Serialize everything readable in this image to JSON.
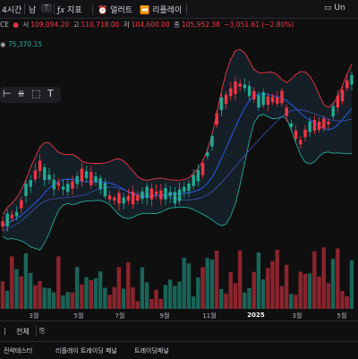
{
  "topbar": {
    "interval": "4시간",
    "chart_type_icon": "candles-icon",
    "compare_label": "남",
    "indicators_label": "지표",
    "alert_label": "얼러트",
    "replay_label": "리플레이",
    "right_partial": "Un"
  },
  "ohlc": {
    "symbol_fragment": "CE",
    "open_label": "시",
    "open": "109,094.20",
    "high_label": "고",
    "high": "110,718.00",
    "low_label": "저",
    "low": "104,600.00",
    "close_label": "종",
    "close": "105,952.38",
    "change": "−3,051.61 (−2.80%)"
  },
  "bb": {
    "value": "75,370.15"
  },
  "toolbox": {
    "icons": [
      "horizontal-line-icon",
      "vertical-line-icon",
      "rectangle-icon",
      "text-icon"
    ]
  },
  "xaxis": {
    "labels": [
      {
        "text": "3월",
        "bold": false
      },
      {
        "text": "5월",
        "bold": false
      },
      {
        "text": "7월",
        "bold": false
      },
      {
        "text": "9월",
        "bold": false
      },
      {
        "text": "11월",
        "bold": false
      },
      {
        "text": "2025",
        "bold": true
      },
      {
        "text": "3월",
        "bold": false
      },
      {
        "text": "5월",
        "bold": false
      }
    ]
  },
  "bottom": {
    "range_label": "전체",
    "tabs": [
      "전략테스터",
      "리플레이 트레이딩 패널",
      "트레이딩패널"
    ]
  },
  "chart_data": {
    "type": "candlestick",
    "title": "",
    "xlabel": "",
    "ylabel": "",
    "overlays": [
      "Bollinger Bands (upper, basis, lower)",
      "moving average"
    ],
    "volume": true,
    "x_ticks": [
      "3월",
      "5월",
      "7월",
      "9월",
      "11월",
      "2025",
      "3월",
      "5월"
    ],
    "colors": {
      "up": "#22ab94",
      "down": "#f23645",
      "bb_upper": "#f23645",
      "bb_lower": "#22ab94",
      "bb_basis": "#2962ff",
      "ma": "#2962ff",
      "band_fill": "#1b2e3a"
    }
  }
}
